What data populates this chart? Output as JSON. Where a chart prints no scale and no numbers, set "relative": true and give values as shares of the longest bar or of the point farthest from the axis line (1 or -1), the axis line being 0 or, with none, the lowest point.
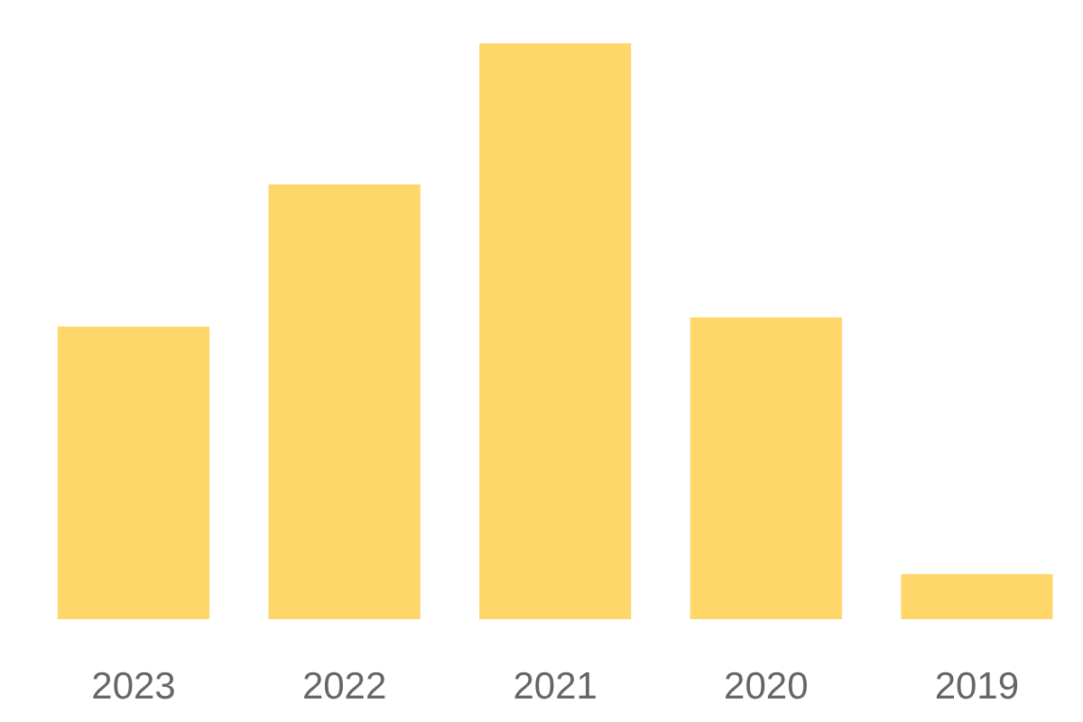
{
  "chart_data": {
    "type": "bar",
    "relative": true,
    "categories": [
      "2023",
      "2022",
      "2021",
      "2020",
      "2019"
    ],
    "values": [
      0.508,
      0.755,
      1,
      0.524,
      0.078
    ],
    "color": "#fed66a"
  }
}
